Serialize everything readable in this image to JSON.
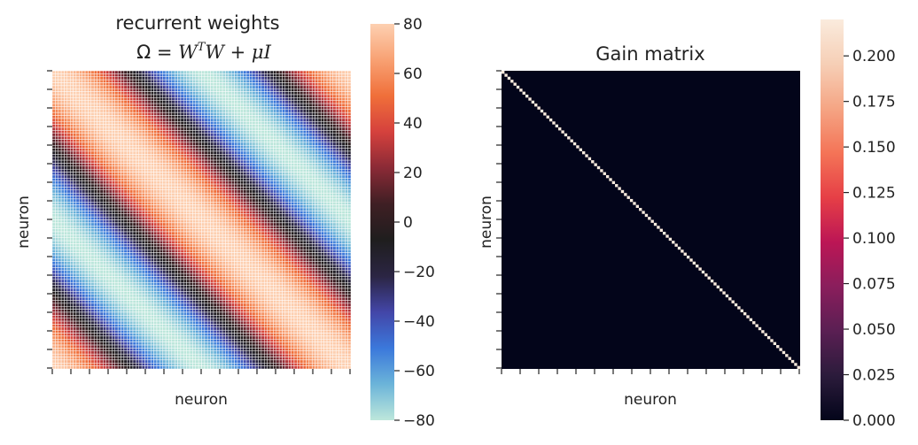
{
  "colors": {
    "icefire": [
      "#bde7db",
      "#6bb4d9",
      "#3b78db",
      "#4346a8",
      "#2b2543",
      "#1f1e1e",
      "#3f1f24",
      "#8a2a36",
      "#d5413d",
      "#f06f3a",
      "#f8a173",
      "#fdd0b1"
    ],
    "rocket": [
      "#03051a",
      "#2b1b3b",
      "#5a1f53",
      "#8a1e5c",
      "#bc1655",
      "#e63f46",
      "#f47457",
      "#f5a584",
      "#f6cfb6",
      "#faebdd"
    ]
  },
  "chart_data": [
    {
      "type": "heatmap",
      "title_line1": "recurrent weights",
      "title_line2": "Ω = W^T W + μI",
      "xlabel": "neuron",
      "ylabel": "neuron",
      "grid": "on",
      "colormap": "icefire",
      "n": 100,
      "description_values": "cosine band: value = 80·cos(2π·(i−j)/n)",
      "amplitude": 80,
      "vmin": -80,
      "vmax": 80,
      "colorbar_ticks": [
        80,
        60,
        40,
        20,
        0,
        -20,
        -40,
        -60,
        -80
      ],
      "colorbar_tick_labels": [
        "80",
        "60",
        "40",
        "20",
        "0",
        "−20",
        "−40",
        "−60",
        "−80"
      ]
    },
    {
      "type": "heatmap",
      "title": "Gain matrix",
      "xlabel": "neuron",
      "ylabel": "neuron",
      "grid": "off",
      "colormap": "rocket",
      "n": 100,
      "diagonal_value": 0.22,
      "off_diagonal_value": 0,
      "vmin": 0,
      "vmax": 0.22,
      "colorbar_ticks": [
        0.2,
        0.175,
        0.15,
        0.125,
        0.1,
        0.075,
        0.05,
        0.025,
        0.0
      ],
      "colorbar_tick_labels": [
        "0.200",
        "0.175",
        "0.150",
        "0.125",
        "0.100",
        "0.075",
        "0.050",
        "0.025",
        "0.000"
      ]
    }
  ]
}
